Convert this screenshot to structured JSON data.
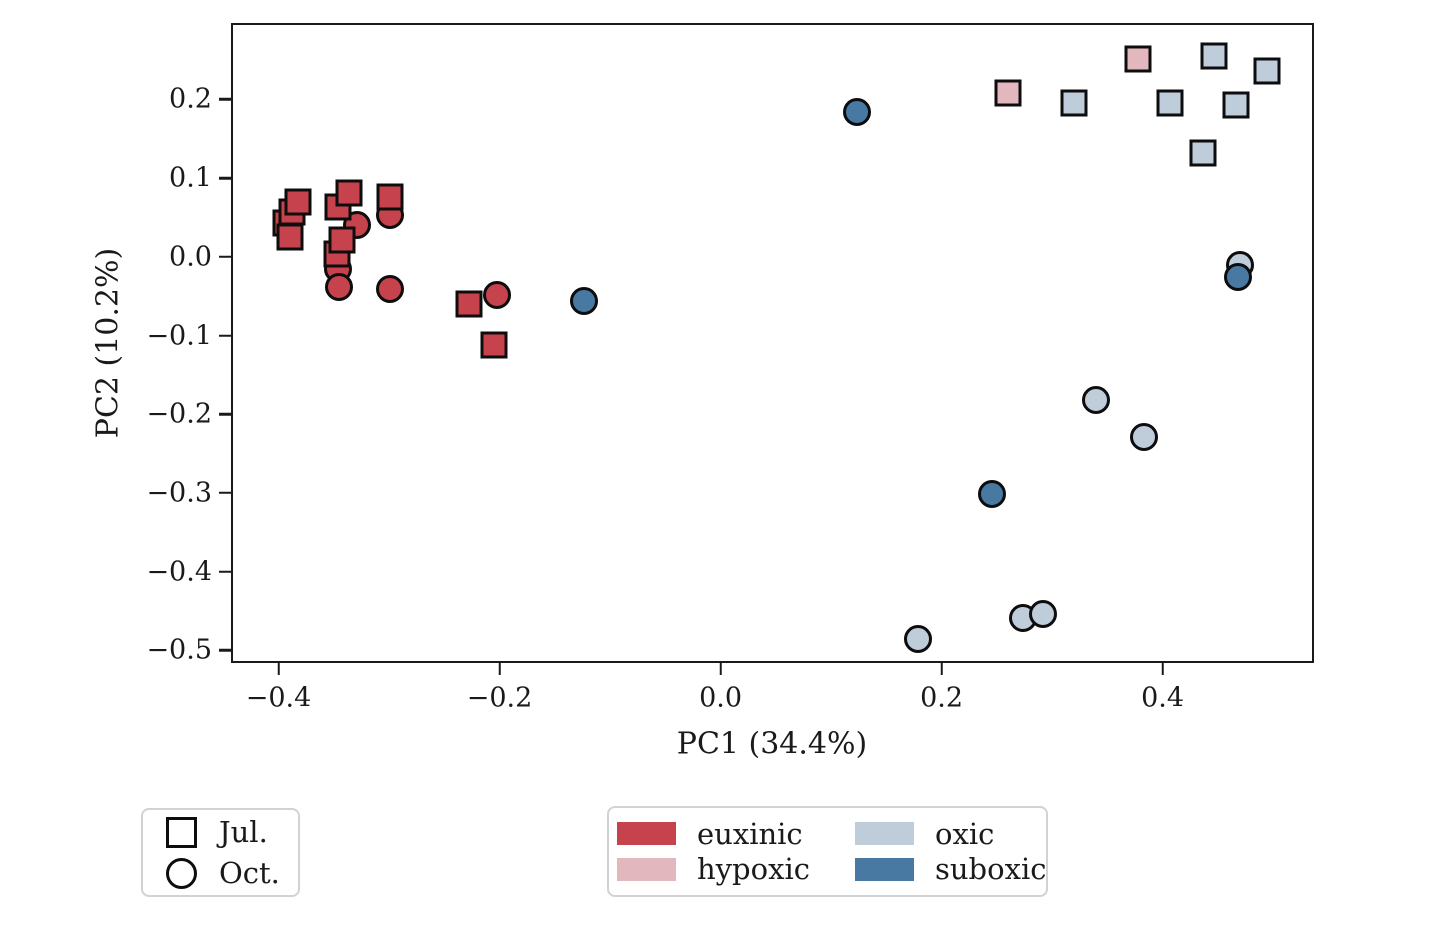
{
  "chart_data": {
    "type": "scatter",
    "title": "",
    "xlabel": "PC1 (34.4%)",
    "ylabel": "PC2 (10.2%)",
    "xlim": [
      -0.443,
      0.537
    ],
    "ylim": [
      -0.516,
      0.297
    ],
    "grid": false,
    "xticks": [
      {
        "value": -0.4,
        "label": "−0.4"
      },
      {
        "value": -0.2,
        "label": "−0.2"
      },
      {
        "value": 0.0,
        "label": "0.0"
      },
      {
        "value": 0.2,
        "label": "0.2"
      },
      {
        "value": 0.4,
        "label": "0.4"
      }
    ],
    "yticks": [
      {
        "value": 0.2,
        "label": "0.2"
      },
      {
        "value": 0.1,
        "label": "0.1"
      },
      {
        "value": 0.0,
        "label": "0.0"
      },
      {
        "value": -0.1,
        "label": "−0.1"
      },
      {
        "value": -0.2,
        "label": "−0.2"
      },
      {
        "value": -0.3,
        "label": "−0.3"
      },
      {
        "value": -0.4,
        "label": "−0.4"
      },
      {
        "value": -0.5,
        "label": "−0.5"
      }
    ],
    "colors": {
      "euxinic": "#C6424C",
      "hypoxic": "#E3B7BE",
      "oxic": "#BFCCDA",
      "suboxic": "#4779A2",
      "marker_edge": "#0d0d0d"
    },
    "series": [
      {
        "name": "oxic-oct",
        "redox": "oxic",
        "season": "Oct.",
        "marker": "circle",
        "points": [
          [
            0.468,
            -0.008
          ],
          [
            0.338,
            -0.18
          ],
          [
            0.381,
            -0.226
          ],
          [
            0.272,
            -0.456
          ],
          [
            0.29,
            -0.451
          ],
          [
            0.177,
            -0.483
          ]
        ]
      },
      {
        "name": "suboxic-oct",
        "redox": "suboxic",
        "season": "Oct.",
        "marker": "circle",
        "points": [
          [
            -0.125,
            -0.053
          ],
          [
            0.122,
            0.187
          ],
          [
            0.244,
            -0.299
          ],
          [
            0.466,
            -0.023
          ]
        ]
      },
      {
        "name": "hypoxic-jul",
        "redox": "hypoxic",
        "season": "Jul.",
        "marker": "square",
        "points": [
          [
            0.258,
            0.211
          ],
          [
            0.376,
            0.254
          ]
        ]
      },
      {
        "name": "oxic-jul",
        "redox": "oxic",
        "season": "Jul.",
        "marker": "square",
        "points": [
          [
            0.318,
            0.198
          ],
          [
            0.405,
            0.198
          ],
          [
            0.445,
            0.257
          ],
          [
            0.435,
            0.135
          ],
          [
            0.465,
            0.196
          ],
          [
            0.493,
            0.238
          ]
        ]
      },
      {
        "name": "euxinic-oct",
        "redox": "euxinic",
        "season": "Oct.",
        "marker": "circle",
        "points": [
          [
            -0.331,
            0.043
          ],
          [
            -0.348,
            -0.013
          ],
          [
            -0.347,
            -0.036
          ],
          [
            -0.301,
            0.056
          ],
          [
            -0.301,
            -0.038
          ],
          [
            -0.204,
            -0.046
          ]
        ]
      },
      {
        "name": "euxinic-jul",
        "redox": "euxinic",
        "season": "Jul.",
        "marker": "square",
        "points": [
          [
            -0.395,
            0.046
          ],
          [
            -0.39,
            0.059
          ],
          [
            -0.384,
            0.072
          ],
          [
            -0.391,
            0.028
          ],
          [
            -0.348,
            0.066
          ],
          [
            -0.338,
            0.084
          ],
          [
            -0.349,
            0.006
          ],
          [
            -0.344,
            0.024
          ],
          [
            -0.301,
            0.078
          ],
          [
            -0.229,
            -0.057
          ],
          [
            -0.207,
            -0.109
          ]
        ]
      }
    ],
    "legend_season": {
      "items": [
        {
          "marker": "square",
          "label": "Jul."
        },
        {
          "marker": "circle",
          "label": "Oct."
        }
      ]
    },
    "legend_redox": {
      "items": [
        {
          "color": "euxinic",
          "label": "euxinic"
        },
        {
          "color": "hypoxic",
          "label": "hypoxic"
        },
        {
          "color": "oxic",
          "label": "oxic"
        },
        {
          "color": "suboxic",
          "label": "suboxic"
        }
      ]
    }
  }
}
